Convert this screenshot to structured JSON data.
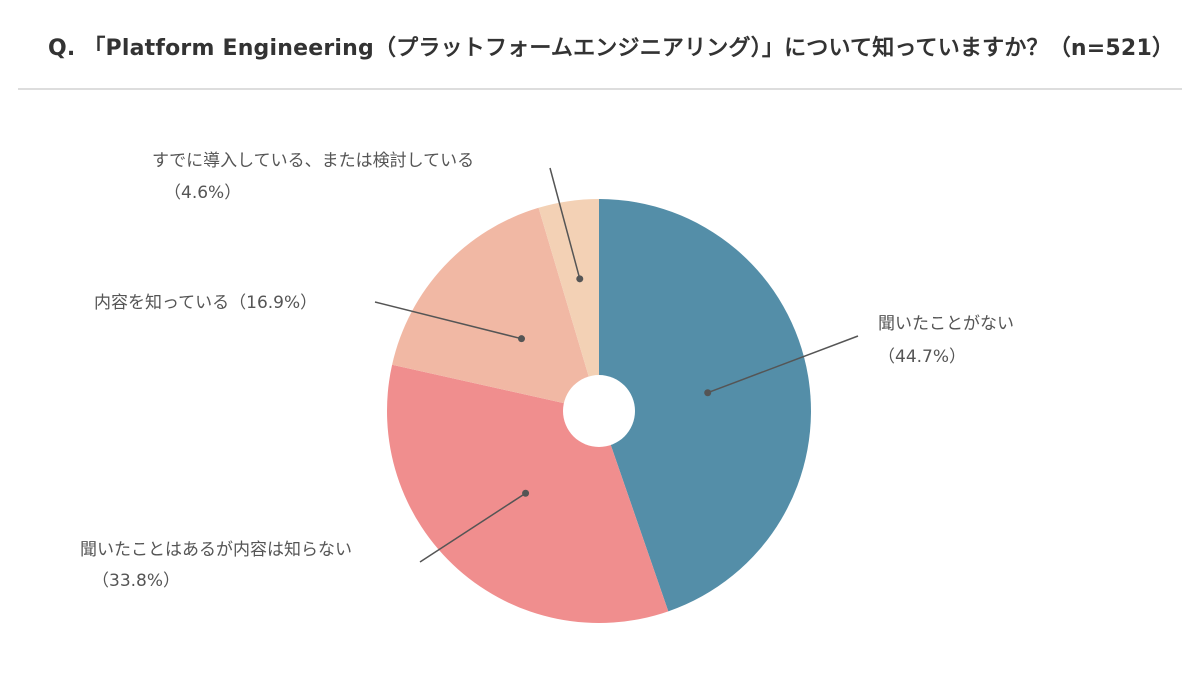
{
  "chart_data": {
    "type": "pie",
    "title": "Q. 「Platform Engineering（プラットフォームエンジニアリング）」について知っていますか？（n=521）",
    "categories": [
      "聞いたことがない",
      "聞いたことはあるが内容は知らない",
      "内容を知っている",
      "すでに導入している、または検討している"
    ],
    "values": [
      44.7,
      33.8,
      16.9,
      4.6
    ],
    "value_labels": [
      "（44.7%）",
      "（33.8%）",
      "（16.9%）",
      "（4.6%）"
    ],
    "colors": [
      "#548ea8",
      "#f08e8e",
      "#f1b8a4",
      "#f3d1b5"
    ],
    "start_angle_deg": 0,
    "direction": "clockwise",
    "center_hole": true,
    "legend": "none"
  }
}
